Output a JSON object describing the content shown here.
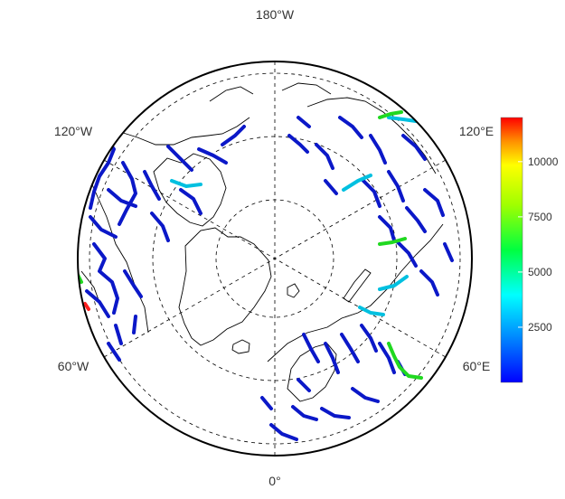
{
  "map": {
    "projection": "polar stereographic (north pole)",
    "longitude_labels": {
      "top": "180°W",
      "bottom": "0°",
      "upper_left": "120°W",
      "upper_right": "120°E",
      "lower_left": "60°W",
      "lower_right": "60°E"
    },
    "colors": {
      "coastline": "#000000",
      "graticule": "#000000",
      "river_low": "#0b18c8",
      "river_mid": "#00d8d8",
      "river_high": "#ff2000"
    }
  },
  "colorbar": {
    "ticks": [
      "10000",
      "7500",
      "5000",
      "2500"
    ],
    "tick_values": [
      10000,
      7500,
      5000,
      2500
    ],
    "min": 0,
    "max": 12000,
    "colors": [
      "#0000ff",
      "#00a0ff",
      "#00ffff",
      "#00ff00",
      "#ffff00",
      "#ff8000",
      "#ff0000"
    ]
  }
}
